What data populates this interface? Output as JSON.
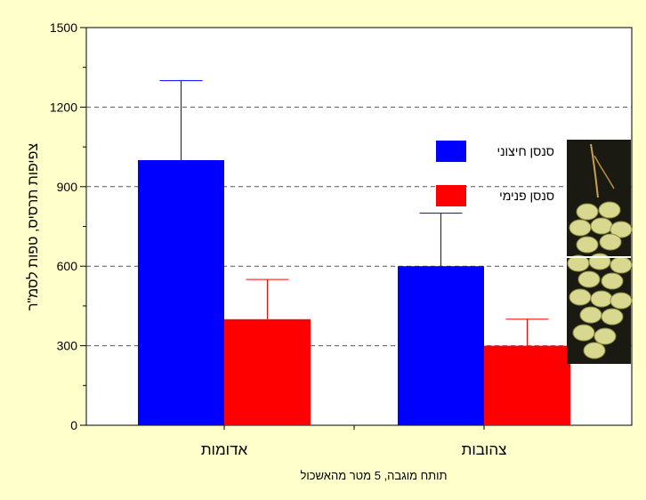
{
  "chart_data": {
    "type": "bar",
    "categories": [
      "אדומות",
      "צהובות"
    ],
    "series": [
      {
        "name": "סנסן חיצוני",
        "values": [
          1000,
          600
        ],
        "error_high": [
          1300,
          800
        ],
        "color": "#0000ff"
      },
      {
        "name": "סנסן פנימי",
        "values": [
          400,
          300
        ],
        "error_high": [
          550,
          400
        ],
        "color": "#ff0000"
      }
    ],
    "ylabel": "צפיפות תרסיס, טפות לסמ\"ר",
    "xlabel": "תותח מוגבה, 5 מטר מהאשכול",
    "ylim": [
      0,
      1500
    ],
    "yticks": [
      0,
      300,
      600,
      900,
      1200,
      1500
    ],
    "grid": true,
    "legend_position": "top-right"
  },
  "colors": {
    "background": "#ffffcc",
    "plot_area": "#ffffff",
    "gridline": "#555555",
    "error_bar_outer": "#0000ff",
    "error_bar_inner": "#ff0000"
  },
  "inset_image": {
    "icon": "yellow-date-cluster-photo"
  }
}
